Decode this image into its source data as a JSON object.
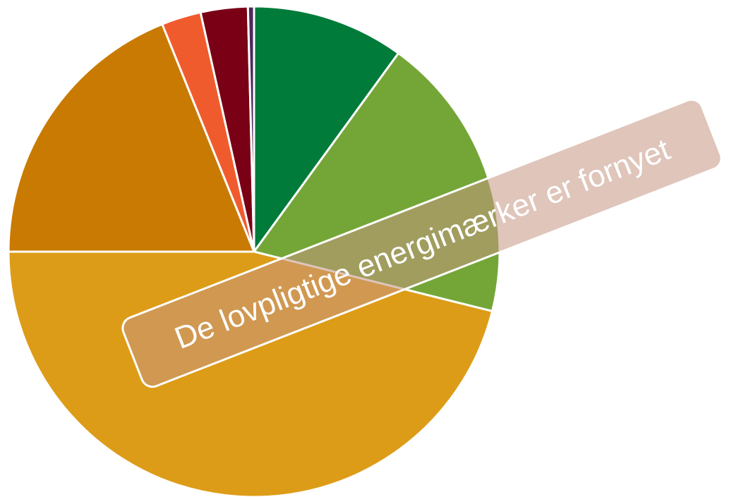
{
  "chart_data": {
    "type": "pie",
    "annotation": "De lovpligtige energimærker er fornyet",
    "categories": [
      null,
      null,
      null,
      null,
      null,
      null,
      null
    ],
    "values": [
      10,
      18.9,
      46.1,
      18.9,
      2.6,
      3.1,
      0.4
    ],
    "colors": [
      "#007b3a",
      "#74a637",
      "#dd9c18",
      "#c97a02",
      "#f05b2e",
      "#7a0016",
      "#4b2a5a"
    ]
  }
}
